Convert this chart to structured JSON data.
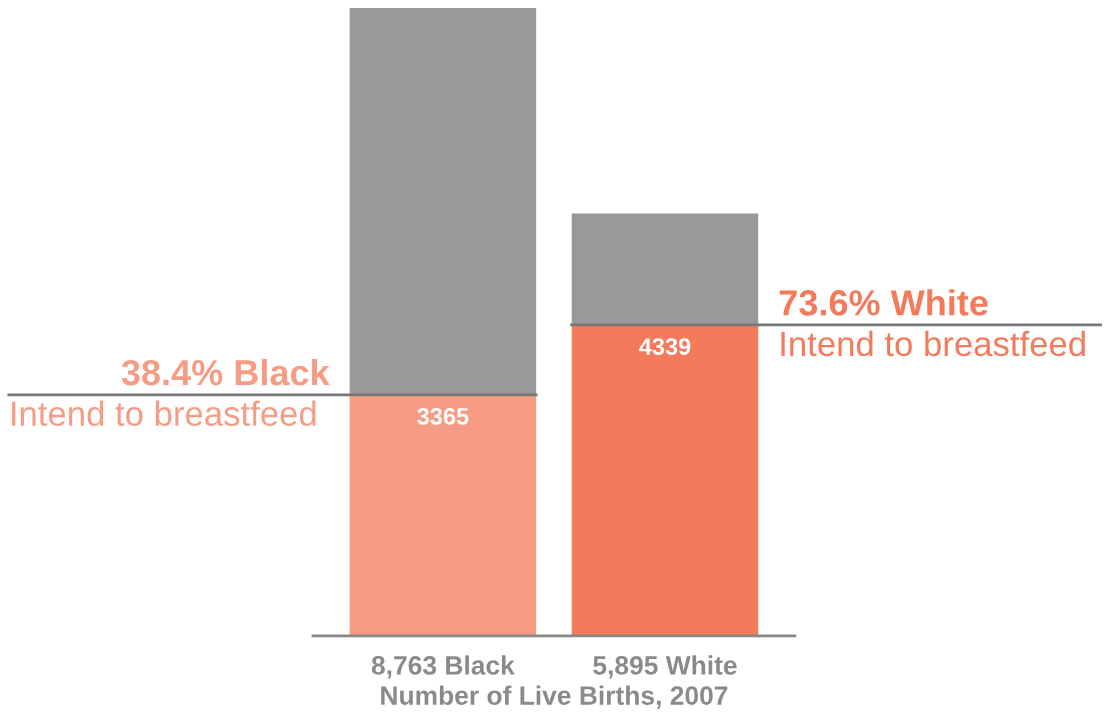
{
  "chart_data": {
    "type": "bar",
    "stacked": true,
    "categories": [
      "8,763 Black",
      "5,895 White"
    ],
    "xlabel": "Number of Live Births, 2007",
    "ylim": [
      0,
      8763
    ],
    "tick_labels": "x",
    "grid": false,
    "legend": false,
    "series": [
      {
        "colors": [
          "#f79c84",
          "#f37a5b"
        ],
        "values": [
          3365,
          4339
        ],
        "value_labels": [
          "3365",
          "4339"
        ]
      },
      {
        "colors": [
          "#999999",
          "#999999"
        ],
        "values": [
          5398,
          1556
        ]
      }
    ],
    "ref_lines": [
      {
        "axis": "y",
        "value": 3365,
        "label": "38.4% Black",
        "color": "#777777"
      },
      {
        "axis": "y",
        "value": 4339,
        "label": "73.6% White",
        "color": "#777777"
      }
    ],
    "annotations": [
      "Intend to breastfeed",
      "Intend to breastfeed"
    ]
  }
}
